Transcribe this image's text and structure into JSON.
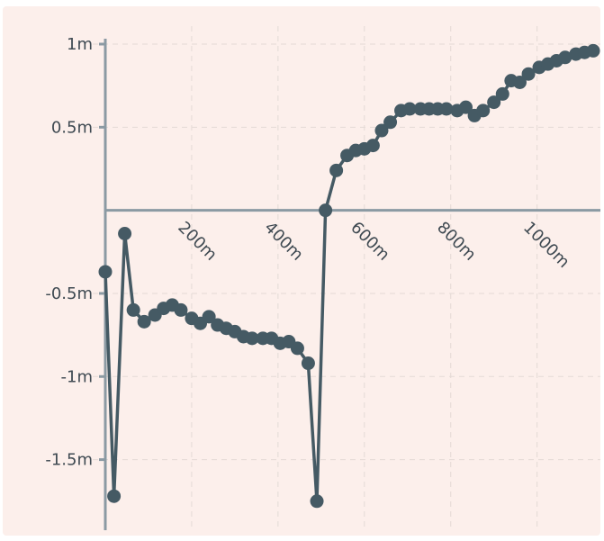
{
  "chart_data": {
    "type": "line",
    "title": "",
    "xlabel": "",
    "ylabel": "",
    "xlim": [
      0,
      1130
    ],
    "ylim": [
      -1.8,
      1.0
    ],
    "grid": true,
    "legend": "none",
    "colors": {
      "background": "#fcefeb",
      "series": "#455a64",
      "axis": "#8b9aa3",
      "grid": "#e4dad6"
    },
    "x_ticks": [
      {
        "value": 200,
        "label": "200m"
      },
      {
        "value": 400,
        "label": "400m"
      },
      {
        "value": 600,
        "label": "600m"
      },
      {
        "value": 800,
        "label": "800m"
      },
      {
        "value": 1000,
        "label": "1000m"
      }
    ],
    "y_ticks": [
      {
        "value": 1.0,
        "label": "1m"
      },
      {
        "value": 0.5,
        "label": "0.5m"
      },
      {
        "value": -0.5,
        "label": "-0.5m"
      },
      {
        "value": -1.0,
        "label": "-1m"
      },
      {
        "value": -1.5,
        "label": "-1.5m"
      }
    ],
    "series": [
      {
        "x": [
          0,
          20,
          45,
          65,
          90,
          115,
          135,
          155,
          175,
          200,
          220,
          240,
          260,
          280,
          300,
          320,
          340,
          365,
          385,
          405,
          425,
          445,
          470,
          490,
          510,
          535,
          560,
          580,
          600,
          620,
          640,
          660,
          685,
          705,
          730,
          750,
          770,
          790,
          815,
          835,
          855,
          875,
          900,
          920,
          940,
          960,
          980,
          1005,
          1025,
          1045,
          1065,
          1090,
          1110,
          1130
        ],
        "y": [
          -0.37,
          -1.72,
          -0.14,
          -0.6,
          -0.67,
          -0.63,
          -0.59,
          -0.57,
          -0.6,
          -0.65,
          -0.68,
          -0.64,
          -0.69,
          -0.71,
          -0.73,
          -0.76,
          -0.77,
          -0.77,
          -0.77,
          -0.8,
          -0.79,
          -0.83,
          -0.92,
          -1.75,
          0.0,
          0.24,
          0.33,
          0.36,
          0.37,
          0.39,
          0.48,
          0.53,
          0.6,
          0.61,
          0.61,
          0.61,
          0.61,
          0.61,
          0.6,
          0.62,
          0.57,
          0.6,
          0.65,
          0.7,
          0.78,
          0.77,
          0.82,
          0.86,
          0.88,
          0.9,
          0.92,
          0.94,
          0.95,
          0.96
        ]
      }
    ]
  }
}
